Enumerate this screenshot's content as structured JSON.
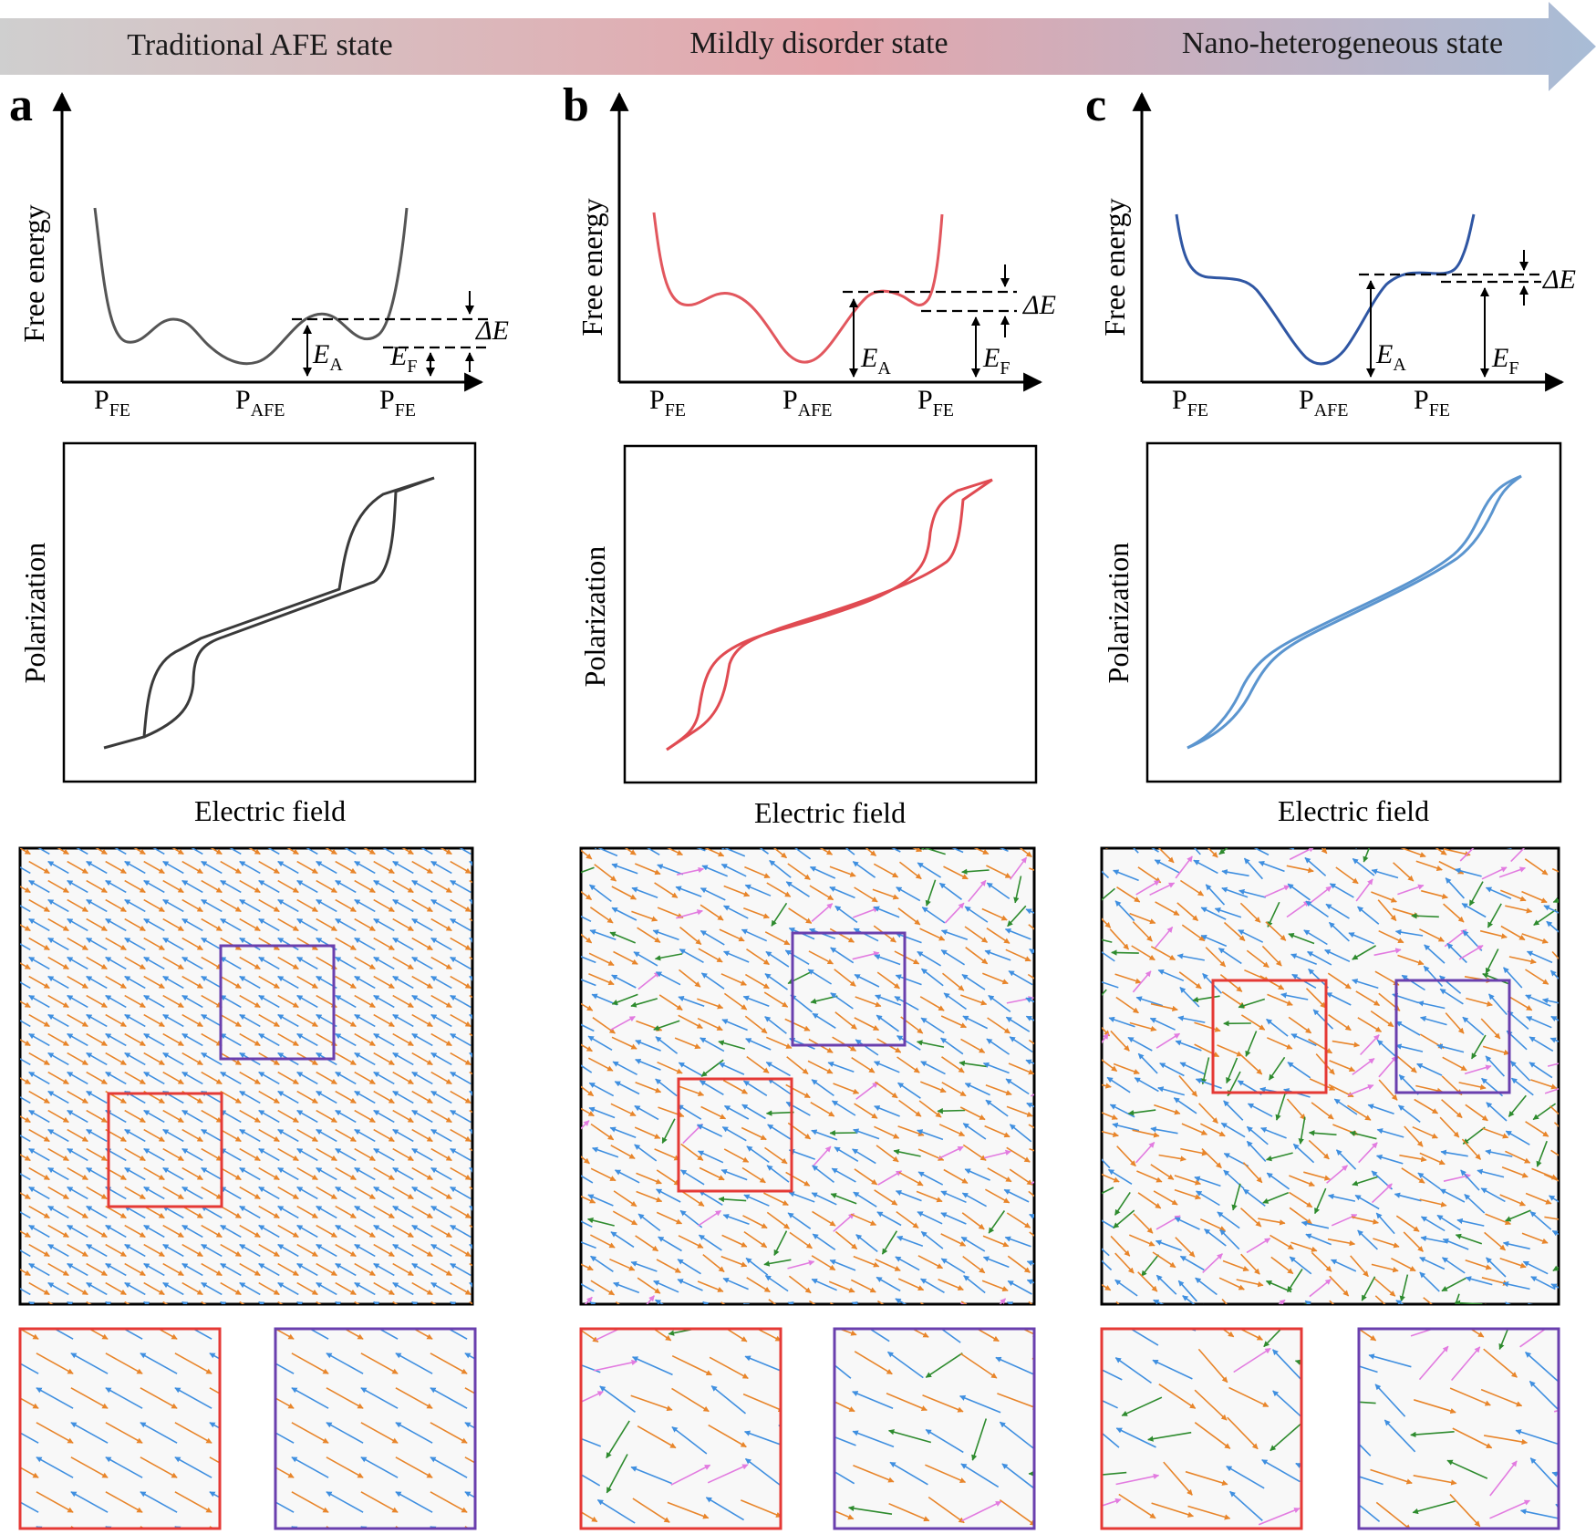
{
  "banner": {
    "stages": [
      "Traditional AFE state",
      "Mildly disorder state",
      "Nano-heterogeneous state"
    ],
    "gradient_colors": [
      "#cfcfcf",
      "#e4a6ac",
      "#a8bcd6"
    ]
  },
  "colors": {
    "orange_arrow": "#e8852a",
    "blue_arrow": "#3f8fe0",
    "green_arrow": "#2e8b2e",
    "pink_arrow": "#e27be0",
    "red_box": "#e53935",
    "purple_box": "#6a3fae"
  },
  "panels": [
    {
      "letter": "a",
      "curve_color": "#555555",
      "pe_color": "#3a3a3a",
      "energy": {
        "ylabel": "Free energy",
        "ticks": [
          {
            "main": "P",
            "sub": "FE"
          },
          {
            "main": "P",
            "sub": "AFE"
          },
          {
            "main": "P",
            "sub": "FE"
          }
        ],
        "ea": {
          "main": "E",
          "sub": "A"
        },
        "ef": {
          "main": "E",
          "sub": "F"
        },
        "de": "ΔE"
      },
      "hysteresis": {
        "ylabel": "Polarization",
        "xlabel": "Electric field"
      },
      "disorder": 0
    },
    {
      "letter": "b",
      "curve_color": "#e2575e",
      "pe_color": "#e04b52",
      "energy": {
        "ylabel": "Free energy",
        "ticks": [
          {
            "main": "P",
            "sub": "FE"
          },
          {
            "main": "P",
            "sub": "AFE"
          },
          {
            "main": "P",
            "sub": "FE"
          }
        ],
        "ea": {
          "main": "E",
          "sub": "A"
        },
        "ef": {
          "main": "E",
          "sub": "F"
        },
        "de": "ΔE"
      },
      "hysteresis": {
        "ylabel": "Polarization",
        "xlabel": "Electric field"
      },
      "disorder": 1
    },
    {
      "letter": "c",
      "curve_color": "#2f56a3",
      "pe_color": "#5b95cf",
      "energy": {
        "ylabel": "Free energy",
        "ticks": [
          {
            "main": "P",
            "sub": "FE"
          },
          {
            "main": "P",
            "sub": "AFE"
          },
          {
            "main": "P",
            "sub": "FE"
          }
        ],
        "ea": {
          "main": "E",
          "sub": "A"
        },
        "ef": {
          "main": "E",
          "sub": "F"
        },
        "de": "ΔE"
      },
      "hysteresis": {
        "ylabel": "Polarization",
        "xlabel": "Electric field"
      },
      "disorder": 2
    }
  ]
}
